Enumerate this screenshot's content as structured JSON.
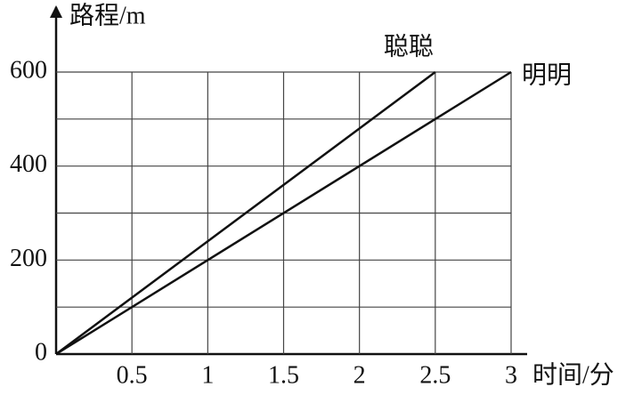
{
  "chart_data": {
    "type": "line",
    "y_label": "路程/m",
    "x_label": "时间/分",
    "xlim": [
      0,
      3
    ],
    "xticks": [
      0.5,
      1,
      1.5,
      2,
      2.5,
      3
    ],
    "ylim": [
      0,
      600
    ],
    "yticks": [
      0,
      200,
      400,
      600
    ],
    "minor_yticks": [
      100,
      300,
      500
    ],
    "grid": true,
    "color": "#111111",
    "series": [
      {
        "name": "聪聪",
        "color": "#111111",
        "x": [
          0,
          2.5
        ],
        "values": [
          0,
          600
        ]
      },
      {
        "name": "明明",
        "color": "#111111",
        "x": [
          0,
          3
        ],
        "values": [
          0,
          600
        ]
      }
    ]
  }
}
